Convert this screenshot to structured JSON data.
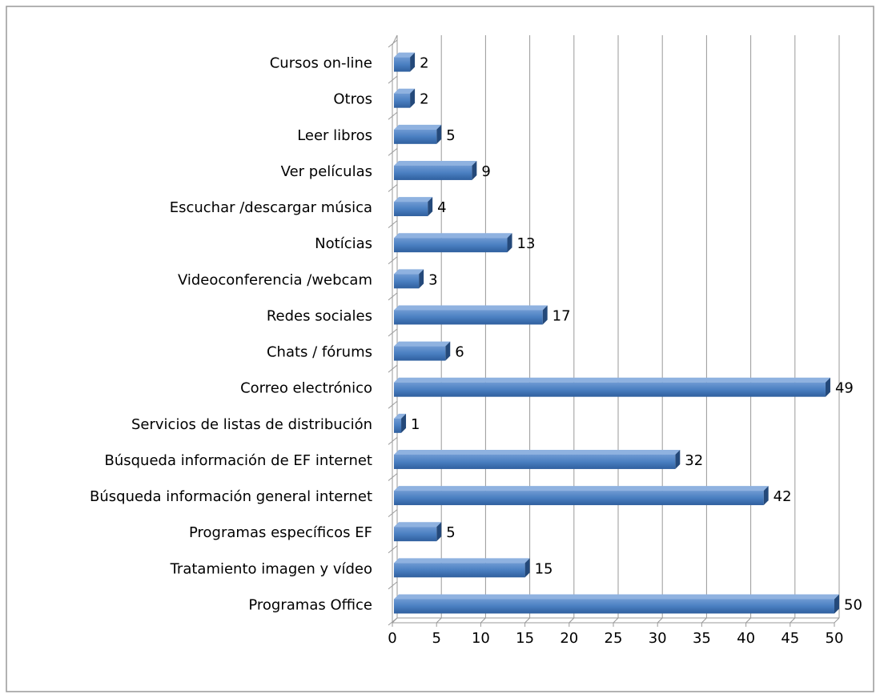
{
  "chart_data": {
    "type": "bar",
    "orientation": "horizontal",
    "categories": [
      "Cursos on-line",
      "Otros",
      "Leer libros",
      "Ver películas",
      "Escuchar /descargar música",
      "Notícias",
      "Videoconferencia /webcam",
      "Redes sociales",
      "Chats / fórums",
      "Correo electrónico",
      "Servicios de listas de distribución",
      "Búsqueda información de EF internet",
      "Búsqueda información general internet",
      "Programas específicos EF",
      "Tratamiento imagen y vídeo",
      "Programas Office"
    ],
    "values": [
      2,
      2,
      5,
      9,
      4,
      13,
      3,
      17,
      6,
      49,
      1,
      32,
      42,
      5,
      15,
      50
    ],
    "color": "#4f81bd",
    "xlim": [
      0,
      50
    ],
    "xticks": [
      0,
      5,
      10,
      15,
      20,
      25,
      30,
      35,
      40,
      45,
      50
    ],
    "grid": true
  }
}
